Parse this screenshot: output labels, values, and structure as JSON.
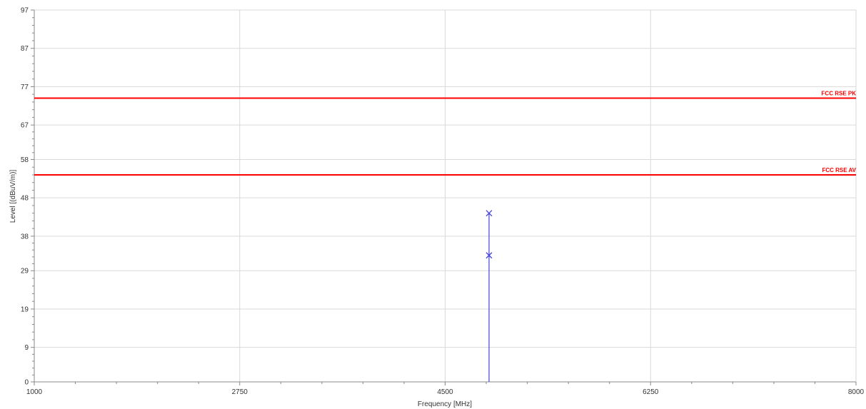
{
  "chart_data": {
    "type": "line",
    "xlabel": "Frequency [MHz]",
    "ylabel": "Level [(dBuV/m)]",
    "xlim": [
      1000,
      8000
    ],
    "ylim": [
      0,
      97
    ],
    "x_ticks": [
      1000,
      2750,
      4500,
      6250,
      8000
    ],
    "x_tick_labels": [
      "1000",
      "2750",
      "4500",
      "6250",
      "8000"
    ],
    "y_ticks": [
      0,
      9,
      19,
      29,
      38,
      48,
      58,
      67,
      77,
      87,
      97
    ],
    "y_tick_labels": [
      "0",
      "9",
      "19",
      "29",
      "38",
      "48",
      "58",
      "67",
      "77",
      "87",
      "97"
    ],
    "grid": true,
    "limit_lines": [
      {
        "name": "FCC RSE PK",
        "value": 74,
        "color": "#ff0000"
      },
      {
        "name": "FCC RSE AV",
        "value": 54,
        "color": "#ff0000"
      }
    ],
    "series": [
      {
        "color": "#4444dd",
        "x": [
          4874,
          4874,
          4874
        ],
        "y": [
          0,
          33,
          44
        ]
      }
    ],
    "markers": [
      {
        "x": 4874,
        "y": 44,
        "symbol": "x",
        "color": "#4444dd"
      },
      {
        "x": 4874,
        "y": 33,
        "symbol": "x",
        "color": "#4444dd"
      }
    ]
  }
}
